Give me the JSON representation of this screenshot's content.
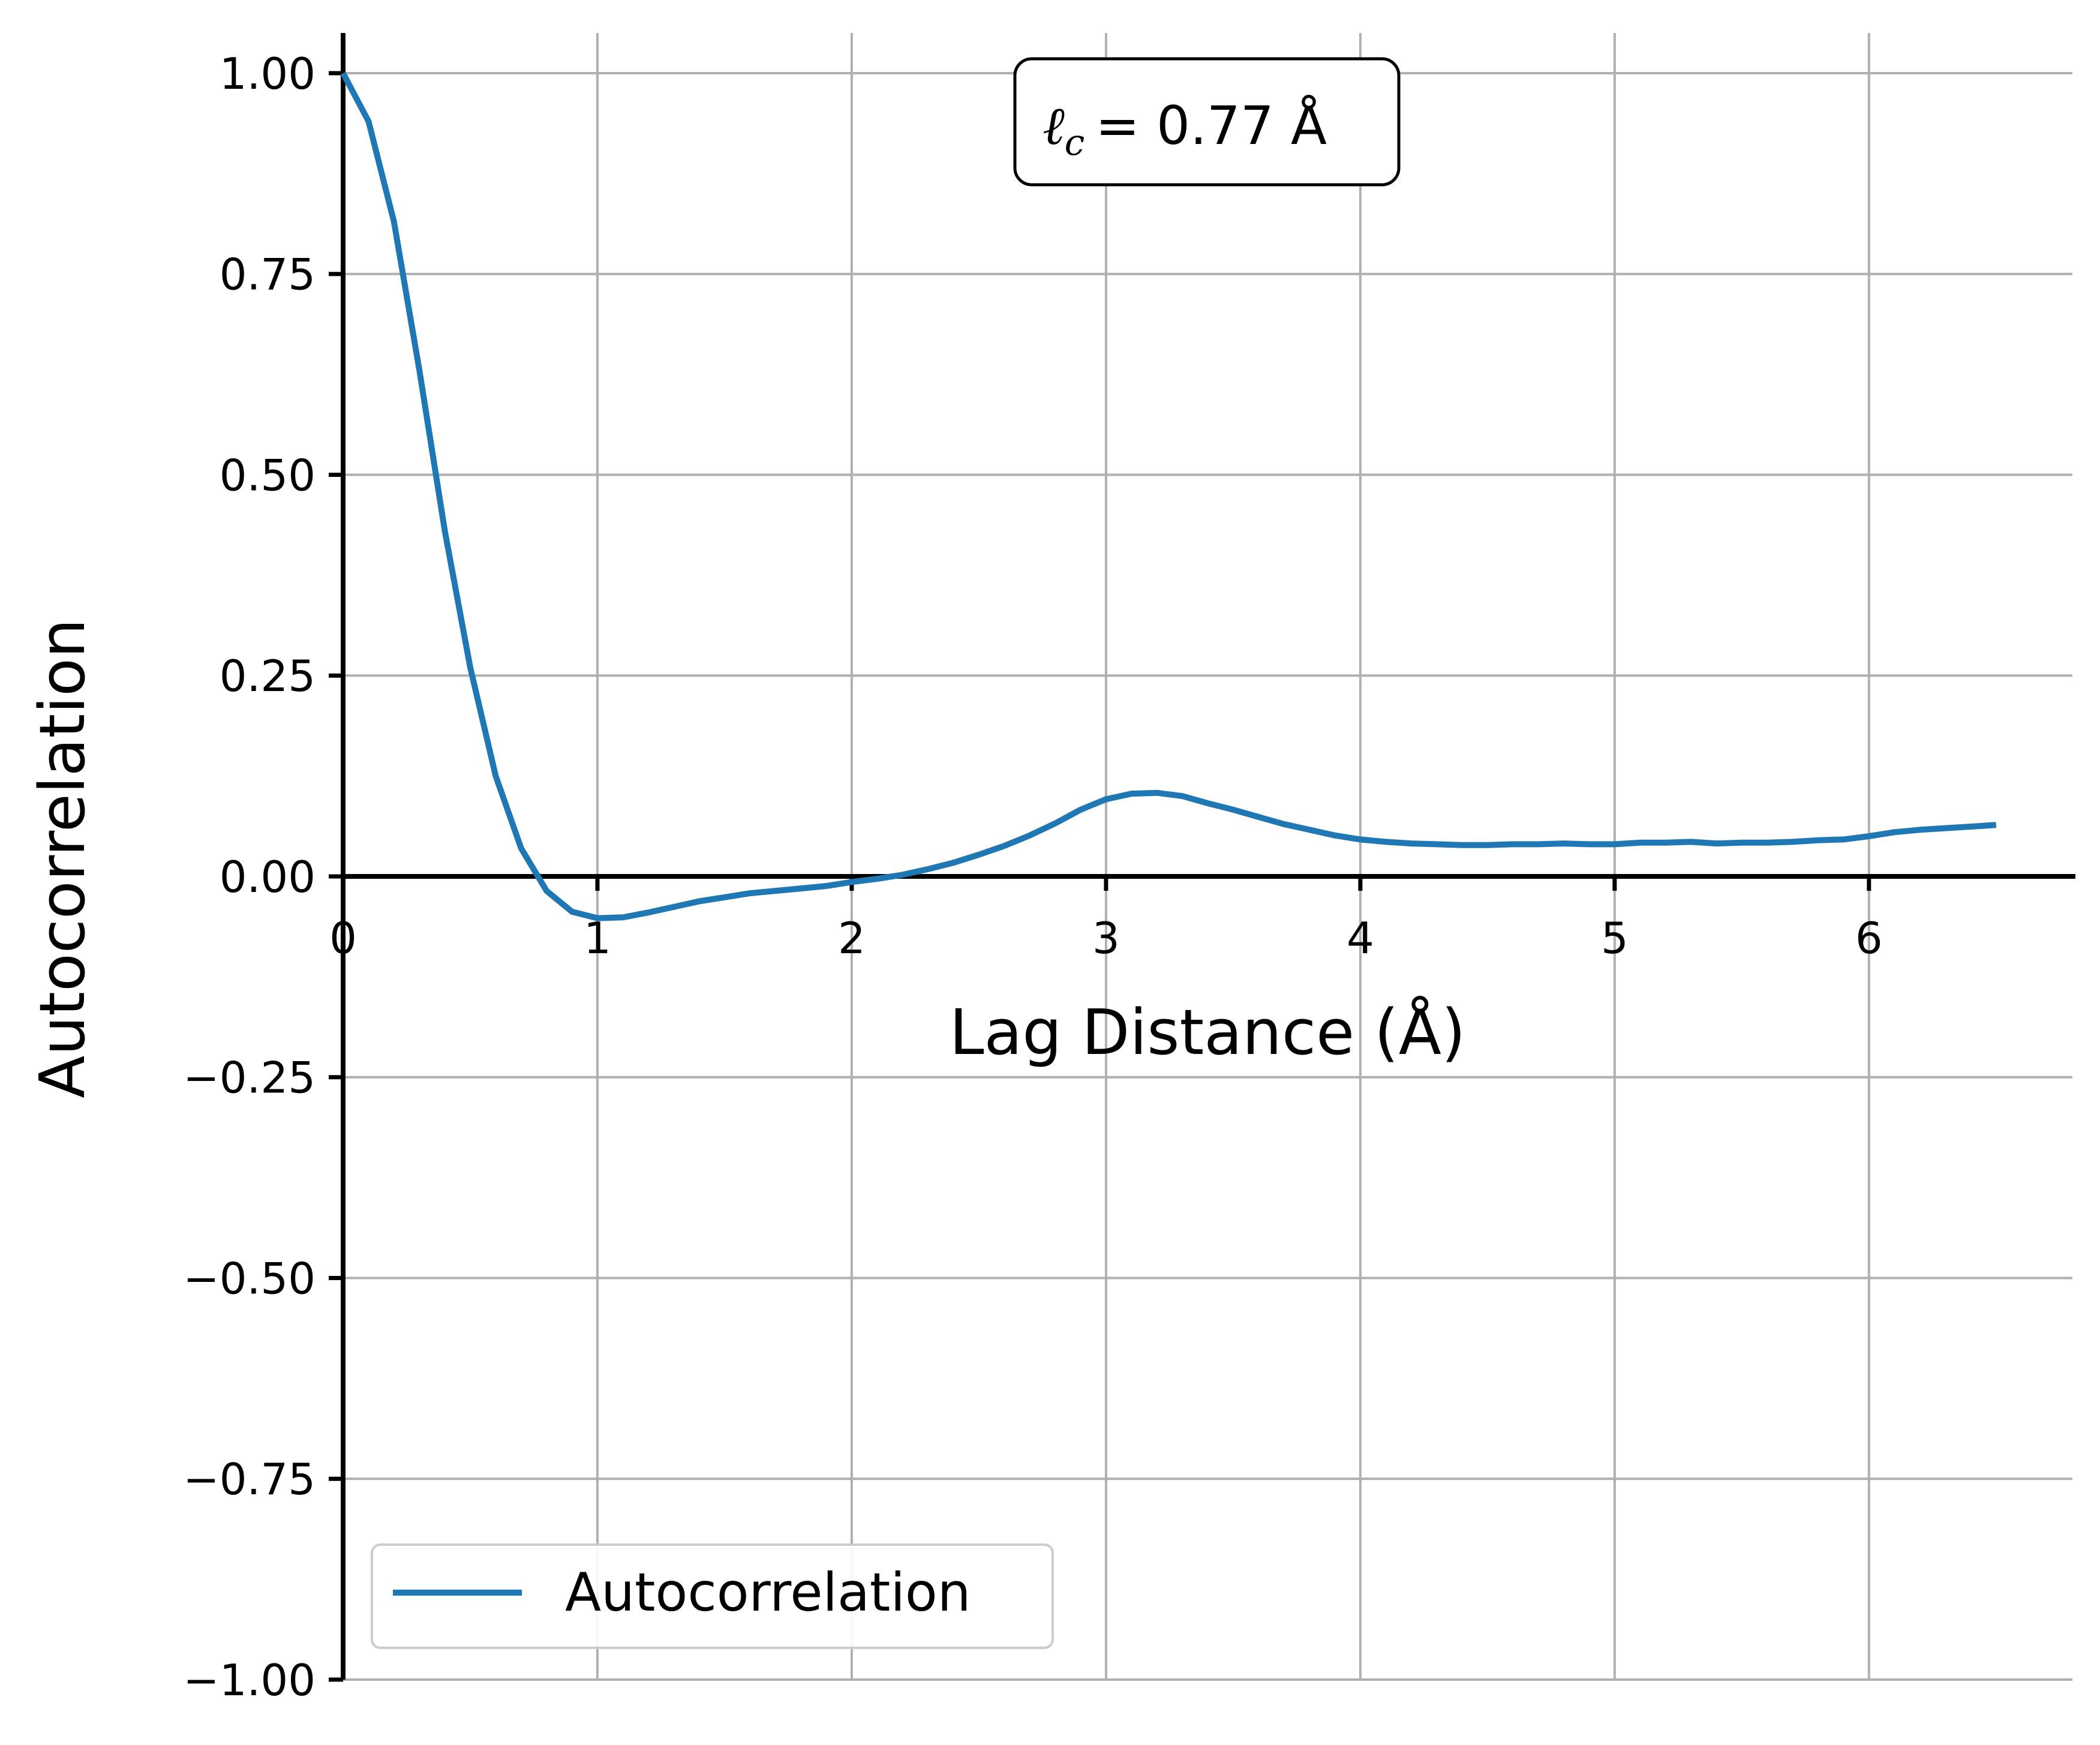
{
  "chart_data": {
    "type": "line",
    "title": "",
    "xlabel": "Lag Distance (Å)",
    "ylabel": "Autocorrelation",
    "xlim": [
      0,
      6.8
    ],
    "ylim": [
      -1.0,
      1.05
    ],
    "x_ticks": [
      0,
      1,
      2,
      3,
      4,
      5,
      6
    ],
    "x_tick_labels": [
      "0",
      "1",
      "2",
      "3",
      "4",
      "5",
      "6"
    ],
    "y_ticks": [
      1.0,
      0.75,
      0.5,
      0.25,
      0.0,
      -0.25,
      -0.5,
      -0.75,
      -1.0
    ],
    "y_tick_labels": [
      "1.00",
      "0.75",
      "0.50",
      "0.25",
      "0.00",
      "−0.25",
      "−0.50",
      "−0.75",
      "−1.00"
    ],
    "grid": true,
    "legend_position": "lower-left",
    "annotation": {
      "label": "ℓ",
      "subscript": "c",
      "value": "= 0.77 Å"
    },
    "series": [
      {
        "name": "Autocorrelation",
        "color": "#1f77b4",
        "x": [
          0,
          0.1,
          0.2,
          0.3,
          0.4,
          0.5,
          0.6,
          0.7,
          0.8,
          0.9,
          1.0,
          1.1,
          1.2,
          1.3,
          1.4,
          1.5,
          1.6,
          1.7,
          1.8,
          1.9,
          2.0,
          2.1,
          2.2,
          2.3,
          2.4,
          2.5,
          2.6,
          2.7,
          2.8,
          2.9,
          3.0,
          3.1,
          3.2,
          3.3,
          3.4,
          3.5,
          3.6,
          3.7,
          3.8,
          3.9,
          4.0,
          4.1,
          4.2,
          4.3,
          4.4,
          4.5,
          4.6,
          4.7,
          4.8,
          4.9,
          5.0,
          5.1,
          5.2,
          5.3,
          5.4,
          5.5,
          5.6,
          5.7,
          5.8,
          5.9,
          6.0,
          6.1,
          6.2,
          6.3,
          6.4,
          6.5
        ],
        "values": [
          1.0,
          0.94,
          0.815,
          0.63,
          0.43,
          0.26,
          0.125,
          0.035,
          -0.018,
          -0.044,
          -0.052,
          -0.051,
          -0.045,
          -0.038,
          -0.031,
          -0.026,
          -0.021,
          -0.018,
          -0.015,
          -0.012,
          -0.007,
          -0.003,
          0.002,
          0.009,
          0.017,
          0.027,
          0.038,
          0.051,
          0.066,
          0.083,
          0.096,
          0.103,
          0.104,
          0.1,
          0.091,
          0.083,
          0.074,
          0.065,
          0.058,
          0.051,
          0.046,
          0.043,
          0.041,
          0.04,
          0.039,
          0.039,
          0.04,
          0.04,
          0.041,
          0.04,
          0.04,
          0.042,
          0.042,
          0.043,
          0.041,
          0.042,
          0.042,
          0.043,
          0.045,
          0.046,
          0.05,
          0.055,
          0.058,
          0.06,
          0.062,
          0.064
        ]
      }
    ]
  }
}
